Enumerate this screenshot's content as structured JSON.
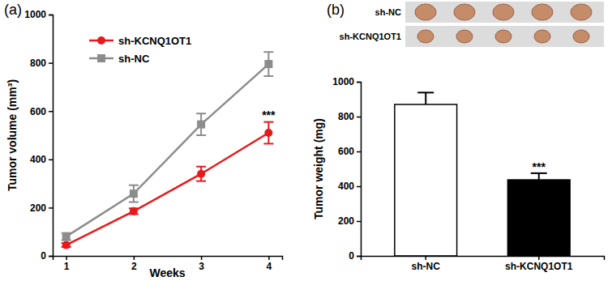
{
  "chart_data": [
    {
      "type": "line",
      "panel_label": "(a)",
      "x_label": "Weeks",
      "y_label": "Tumor volume (mm³)",
      "x": [
        1,
        2,
        3,
        4
      ],
      "xlim": [
        0.8,
        4.2
      ],
      "xticks": [
        1,
        2,
        3,
        4
      ],
      "ylim": [
        0,
        1000
      ],
      "yticks": [
        0,
        200,
        400,
        600,
        800,
        1000
      ],
      "legend": "top-left",
      "series": [
        {
          "name": "sh-KCNQ1OT1",
          "color": "#e8191c",
          "marker": "circle",
          "values": [
            45,
            185,
            340,
            510
          ],
          "errors": [
            8,
            12,
            30,
            45
          ]
        },
        {
          "name": "sh-NC",
          "color": "#8c8c8c",
          "marker": "square",
          "values": [
            80,
            258,
            545,
            795
          ],
          "errors": [
            15,
            35,
            45,
            50
          ]
        }
      ],
      "annotations": [
        {
          "text": "***",
          "series": 0,
          "category": 3
        }
      ]
    },
    {
      "type": "bar",
      "panel_label": "(b)",
      "y_label": "Tumor weight (mg)",
      "categories": [
        "sh-NC",
        "sh-KCNQ1OT1"
      ],
      "values": [
        870,
        437
      ],
      "errors": [
        68,
        38
      ],
      "colors": [
        "#ffffff",
        "#000000"
      ],
      "ylim": [
        0,
        1000
      ],
      "yticks": [
        0,
        200,
        400,
        600,
        800,
        1000
      ],
      "photo_labels": [
        "sh-NC",
        "sh-KCNQ1OT1"
      ],
      "annotations": [
        {
          "text": "***",
          "category": 1
        }
      ]
    }
  ]
}
